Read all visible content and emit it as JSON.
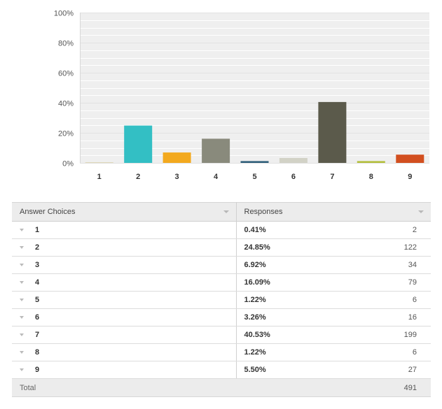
{
  "chart_data": {
    "type": "bar",
    "categories": [
      "1",
      "2",
      "3",
      "4",
      "5",
      "6",
      "7",
      "8",
      "9"
    ],
    "values": [
      0.41,
      24.85,
      6.92,
      16.09,
      1.22,
      3.26,
      40.53,
      1.22,
      5.5
    ],
    "colors": [
      "#dfd7b9",
      "#33bfc4",
      "#f3a91e",
      "#898a7c",
      "#2f5f7a",
      "#d2d2c6",
      "#5b5a4b",
      "#b3bf3c",
      "#d24f1f"
    ],
    "y_ticks": [
      "0%",
      "20%",
      "40%",
      "60%",
      "80%",
      "100%"
    ],
    "ylim": [
      0,
      100
    ],
    "grid": true,
    "title": "",
    "xlabel": "",
    "ylabel": ""
  },
  "table": {
    "header_choices": "Answer Choices",
    "header_responses": "Responses",
    "rows": [
      {
        "choice": "1",
        "percent": "0.41%",
        "count": "2"
      },
      {
        "choice": "2",
        "percent": "24.85%",
        "count": "122"
      },
      {
        "choice": "3",
        "percent": "6.92%",
        "count": "34"
      },
      {
        "choice": "4",
        "percent": "16.09%",
        "count": "79"
      },
      {
        "choice": "5",
        "percent": "1.22%",
        "count": "6"
      },
      {
        "choice": "6",
        "percent": "3.26%",
        "count": "16"
      },
      {
        "choice": "7",
        "percent": "40.53%",
        "count": "199"
      },
      {
        "choice": "8",
        "percent": "1.22%",
        "count": "6"
      },
      {
        "choice": "9",
        "percent": "5.50%",
        "count": "27"
      }
    ],
    "total_label": "Total",
    "total_value": "491"
  }
}
